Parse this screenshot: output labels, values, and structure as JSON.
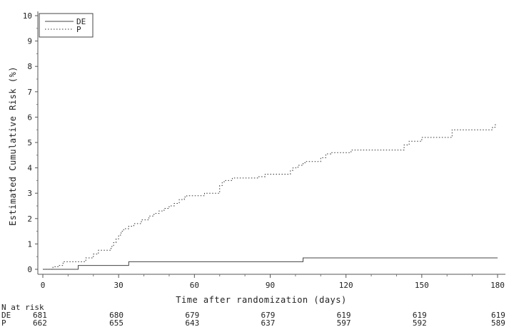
{
  "chart_data": {
    "type": "line",
    "step": true,
    "xlabel": "Time after randomization (days)",
    "ylabel": "Estimated Cumulative Risk (%)",
    "xlim": [
      0,
      180
    ],
    "ylim": [
      0,
      10
    ],
    "xticks": [
      0,
      30,
      60,
      90,
      120,
      150,
      180
    ],
    "yticks": [
      0,
      1,
      2,
      3,
      4,
      5,
      6,
      7,
      8,
      9,
      10
    ],
    "grid": false,
    "legend": {
      "position": "top-left"
    },
    "series": [
      {
        "name": "DE",
        "style": "solid",
        "color": "#444444",
        "x": [
          0,
          14,
          34,
          103,
          180
        ],
        "y": [
          0,
          0.15,
          0.3,
          0.45,
          0.45
        ]
      },
      {
        "name": "P",
        "style": "dotted",
        "color": "#333333",
        "x": [
          0,
          4,
          6,
          8,
          14,
          17,
          20,
          22,
          27,
          28,
          29,
          30,
          31,
          32,
          34,
          36,
          39,
          42,
          44,
          46,
          48,
          50,
          52,
          54,
          56,
          57,
          64,
          70,
          71,
          72,
          75,
          85,
          88,
          98,
          99,
          101,
          103,
          104,
          110,
          112,
          114,
          122,
          143,
          145,
          150,
          162,
          178,
          179,
          180
        ],
        "y": [
          0,
          0.1,
          0.15,
          0.3,
          0.3,
          0.45,
          0.6,
          0.75,
          0.9,
          1.05,
          1.2,
          1.35,
          1.5,
          1.6,
          1.7,
          1.8,
          1.95,
          2.1,
          2.2,
          2.3,
          2.4,
          2.5,
          2.6,
          2.75,
          2.85,
          2.9,
          3.0,
          3.3,
          3.45,
          3.5,
          3.6,
          3.65,
          3.75,
          3.9,
          4.0,
          4.1,
          4.2,
          4.25,
          4.4,
          4.55,
          4.6,
          4.7,
          4.9,
          5.05,
          5.2,
          5.5,
          5.6,
          5.7,
          5.7
        ]
      }
    ],
    "at_risk": {
      "title": "N at risk",
      "times": [
        0,
        30,
        60,
        90,
        120,
        150,
        180
      ],
      "rows": [
        {
          "label": "DE",
          "values": [
            681,
            680,
            679,
            679,
            619,
            619,
            619
          ]
        },
        {
          "label": "P",
          "values": [
            662,
            655,
            643,
            637,
            597,
            592,
            589
          ]
        }
      ]
    }
  }
}
